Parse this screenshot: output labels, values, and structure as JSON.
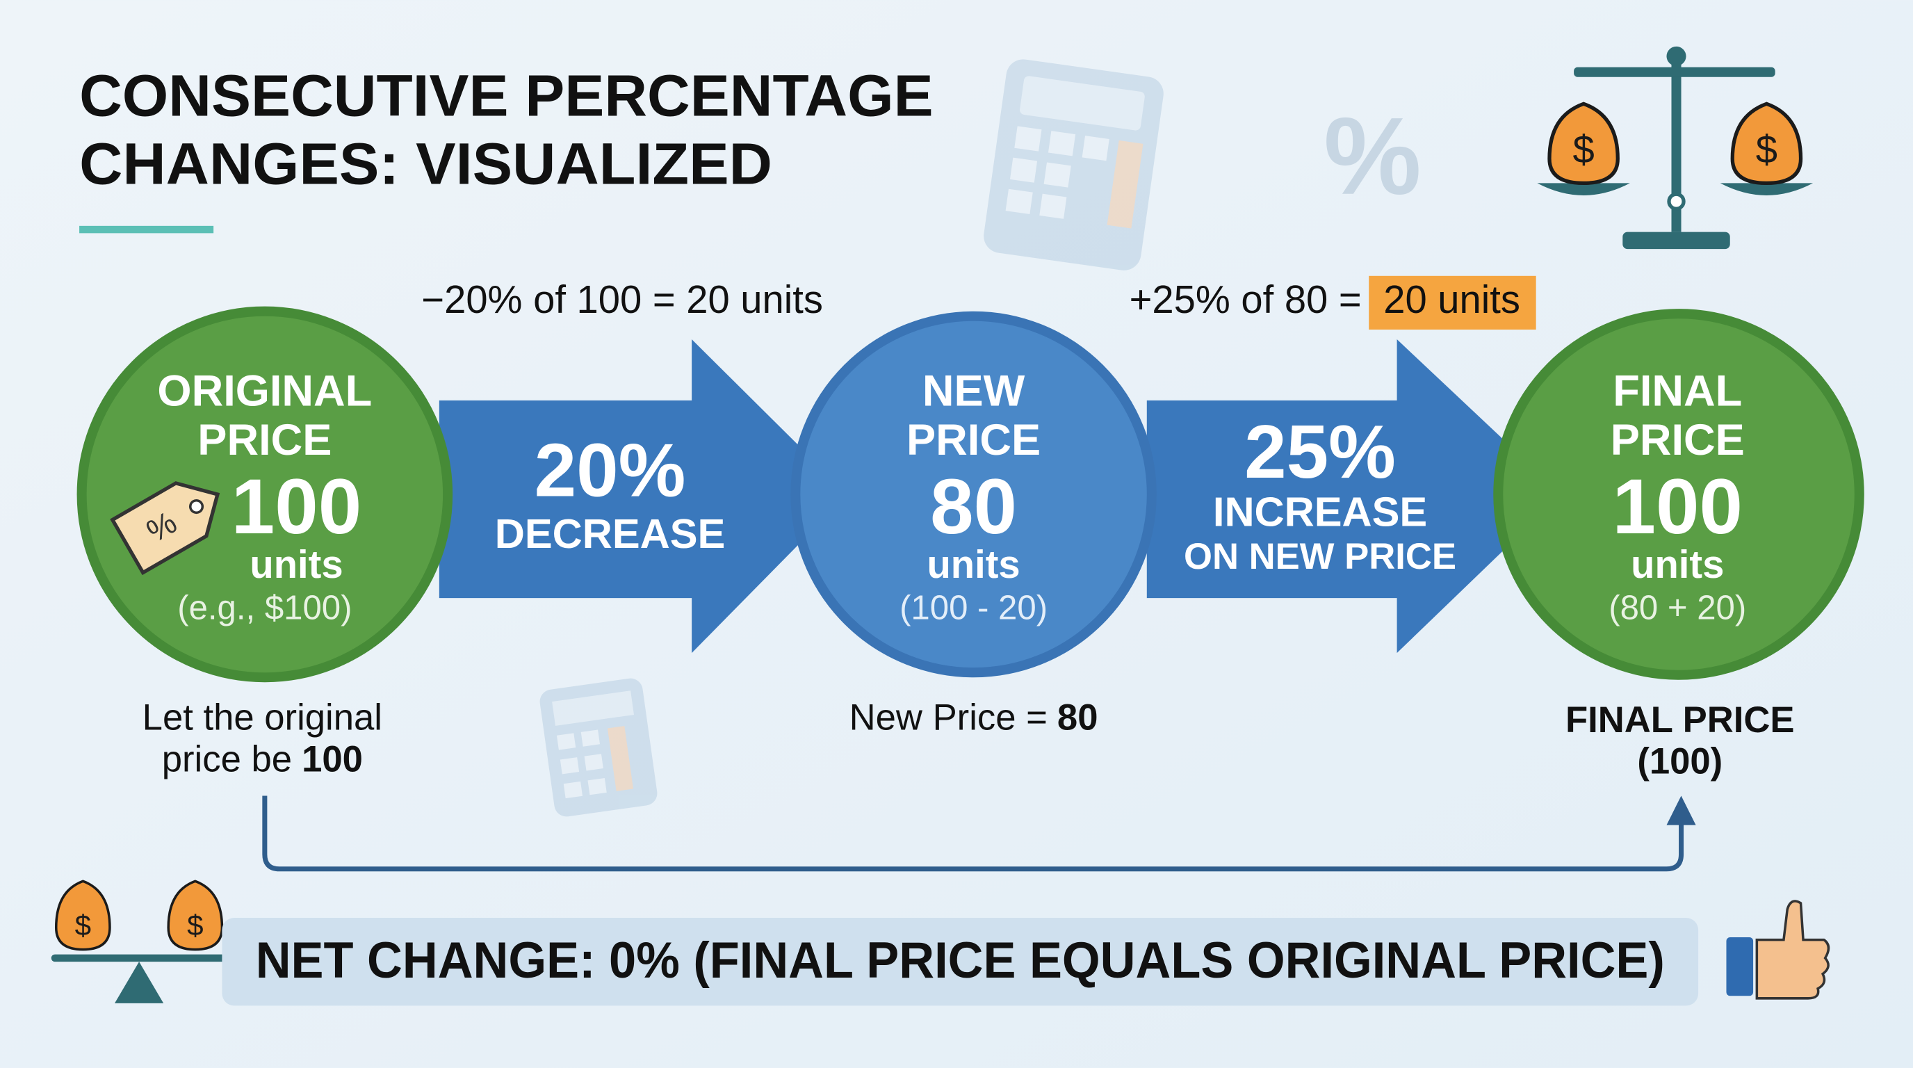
{
  "header": {
    "title_lines": [
      "CONSECUTIVE PERCENTAGE",
      "CHANGES: VISUALIZED"
    ]
  },
  "nodes": [
    {
      "label_lines": [
        "ORIGINAL",
        "PRICE"
      ],
      "value": 100,
      "unit": "units",
      "note": "(e.g., $100)",
      "caption_lines": [
        "Let the original",
        "price be"
      ],
      "caption_value": 100
    },
    {
      "label_lines": [
        "NEW",
        "PRICE"
      ],
      "value": 80,
      "unit": "units",
      "note": "(100 - 20)",
      "caption": "New Price =",
      "caption_value": 80
    },
    {
      "label_lines": [
        "FINAL",
        "PRICE"
      ],
      "value": 100,
      "unit": "units",
      "note": "(80 + 20)",
      "caption_lines": [
        "FINAL PRICE",
        "(100)"
      ]
    }
  ],
  "arrows": [
    {
      "calc": "−20% of 100 = 20 units",
      "big": "20%",
      "label_lines": [
        "DECREASE"
      ]
    },
    {
      "calc": "+25% of 80 =",
      "calc_highlight": "20 units",
      "big": "25%",
      "label_lines": [
        "INCREASE",
        "ON NEW PRICE"
      ]
    }
  ],
  "decor": {
    "percent_sign": "%",
    "dollar_sign": "$"
  },
  "summary": "NET CHANGE: 0% (FINAL PRICE EQUALS ORIGINAL PRICE)"
}
